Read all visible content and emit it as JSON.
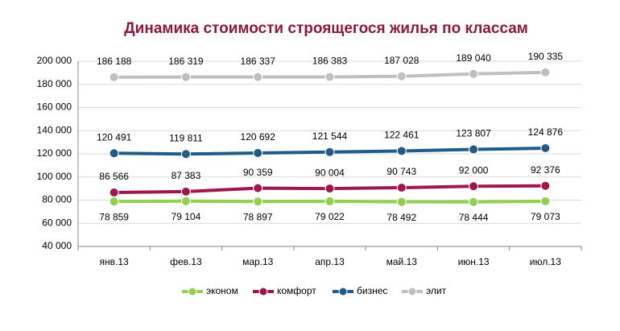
{
  "chart_data": {
    "type": "line",
    "title": "Динамика стоимости строящегося жилья по классам",
    "categories": [
      "янв.13",
      "фев.13",
      "мар.13",
      "апр.13",
      "май.13",
      "июн.13",
      "июл.13"
    ],
    "series": [
      {
        "name": "эконом",
        "color": "#92d050",
        "label_position": "below",
        "values": [
          78859,
          79104,
          78897,
          79022,
          78492,
          78444,
          79073
        ],
        "value_labels": [
          "78 859",
          "79 104",
          "78 897",
          "79 022",
          "78 492",
          "78 444",
          "79 073"
        ]
      },
      {
        "name": "комфорт",
        "color": "#a0184a",
        "label_position": "above",
        "values": [
          86566,
          87383,
          90359,
          90004,
          90743,
          92000,
          92376
        ],
        "value_labels": [
          "86 566",
          "87 383",
          "90 359",
          "90 004",
          "90 743",
          "92 000",
          "92 376"
        ]
      },
      {
        "name": "бизнес",
        "color": "#1f5c87",
        "label_position": "above",
        "values": [
          120491,
          119811,
          120692,
          121544,
          122461,
          123807,
          124876
        ],
        "value_labels": [
          "120 491",
          "119 811",
          "120 692",
          "121 544",
          "122 461",
          "123 807",
          "124 876"
        ]
      },
      {
        "name": "элит",
        "color": "#bfbfbf",
        "label_position": "above",
        "values": [
          186188,
          186319,
          186337,
          186383,
          187028,
          189040,
          190335
        ],
        "value_labels": [
          "186 188",
          "186 319",
          "186 337",
          "186 383",
          "187 028",
          "189 040",
          "190 335"
        ]
      }
    ],
    "ylim": [
      40000,
      200000
    ],
    "yticks": [
      {
        "value": 40000,
        "label": "40 000"
      },
      {
        "value": 60000,
        "label": "60 000"
      },
      {
        "value": 80000,
        "label": "80 000"
      },
      {
        "value": 100000,
        "label": "100 000"
      },
      {
        "value": 120000,
        "label": "120 000"
      },
      {
        "value": 140000,
        "label": "140 000"
      },
      {
        "value": 160000,
        "label": "160 000"
      },
      {
        "value": 180000,
        "label": "180 000"
      },
      {
        "value": 200000,
        "label": "200 000"
      }
    ],
    "grid": true,
    "legend": "bottom"
  }
}
